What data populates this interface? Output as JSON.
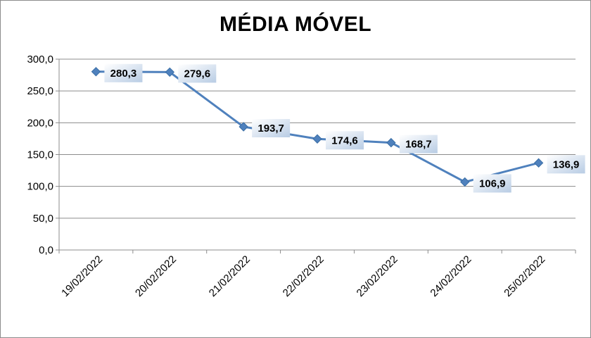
{
  "chart_data": {
    "type": "line",
    "title": "MÉDIA MÓVEL",
    "xlabel": "",
    "ylabel": "",
    "categories": [
      "19/02/2022",
      "20/02/2022",
      "21/02/2022",
      "22/02/2022",
      "23/02/2022",
      "24/02/2022",
      "25/02/2022"
    ],
    "values": [
      280.3,
      279.6,
      193.7,
      174.6,
      168.7,
      106.9,
      136.9
    ],
    "data_labels": [
      "280,3",
      "279,6",
      "193,7",
      "174,6",
      "168,7",
      "106,9",
      "136,9"
    ],
    "y_ticks": [
      "0,0",
      "50,0",
      "100,0",
      "150,0",
      "200,0",
      "250,0",
      "300,0"
    ],
    "ylim": [
      0,
      300
    ],
    "grid": true,
    "legend": "none",
    "colors": {
      "line": "#4f81bd",
      "marker": "#4f81bd",
      "gridline": "#8c8c8c",
      "axis": "#8c8c8c",
      "label_box_light": "#ffffff",
      "label_box_dark": "#b8cce4"
    }
  }
}
